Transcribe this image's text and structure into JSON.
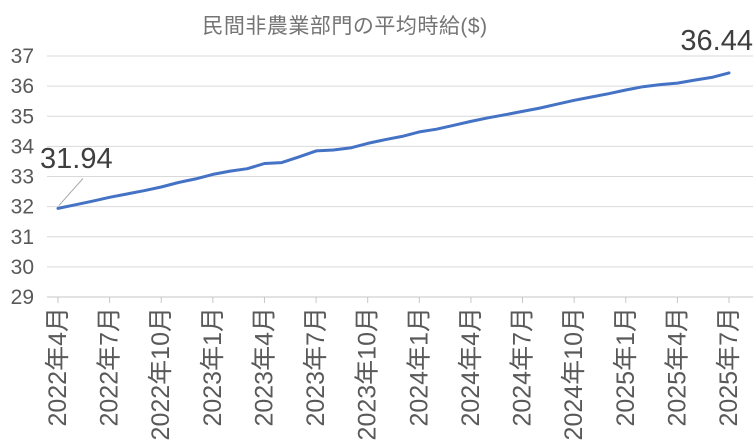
{
  "chart_data": {
    "type": "line",
    "title": "民間非農業部門の平均時給($)",
    "xlabel": "",
    "ylabel": "",
    "ylim": [
      29,
      37
    ],
    "y_ticks": [
      29,
      30,
      31,
      32,
      33,
      34,
      35,
      36,
      37
    ],
    "grid": true,
    "legend": false,
    "x_tick_labels": [
      "2022年4月",
      "2022年7月",
      "2022年10月",
      "2023年1月",
      "2023年4月",
      "2023年7月",
      "2023年10月",
      "2024年1月",
      "2024年4月",
      "2024年7月",
      "2024年10月",
      "2025年1月",
      "2025年4月",
      "2025年7月"
    ],
    "x_tick_every_n_months": 3,
    "values": [
      31.94,
      32.06,
      32.18,
      32.31,
      32.42,
      32.53,
      32.65,
      32.8,
      32.92,
      33.07,
      33.18,
      33.26,
      33.43,
      33.46,
      33.65,
      33.85,
      33.88,
      33.95,
      34.1,
      34.22,
      34.33,
      34.48,
      34.57,
      34.7,
      34.83,
      34.95,
      35.05,
      35.16,
      35.27,
      35.4,
      35.53,
      35.64,
      35.75,
      35.87,
      35.98,
      36.05,
      36.1,
      36.2,
      36.29,
      36.44
    ],
    "annotations": [
      {
        "label": "31.94",
        "point_index": 0
      },
      {
        "label": "36.44",
        "point_index": 39
      }
    ],
    "colors": {
      "line": "#4472C4",
      "gridline": "#D9D9D9",
      "axis_line": "#C6C6C6",
      "axis_text": "#595959",
      "title_text": "#747474",
      "annotation_text": "#3F3F3F",
      "leader_line": "#A6A6A6",
      "background": "#FFFFFF"
    }
  }
}
